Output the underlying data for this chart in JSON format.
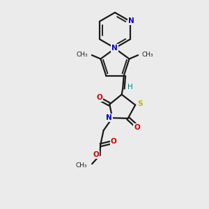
{
  "bg_color": "#ebebeb",
  "bond_color": "#1a1a1a",
  "N_color": "#0000cc",
  "S_color": "#b8b800",
  "O_color": "#cc0000",
  "H_color": "#008888",
  "figsize": [
    3.0,
    3.0
  ],
  "dpi": 100,
  "xlim": [
    0,
    10
  ],
  "ylim": [
    0,
    10
  ]
}
